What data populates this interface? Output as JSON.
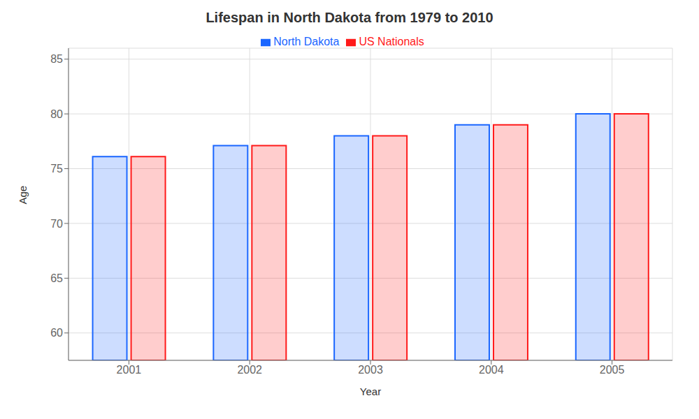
{
  "chart_data": {
    "type": "bar",
    "title": "Lifespan in North Dakota from 1979 to 2010",
    "x_label": "Year",
    "y_label": "Age",
    "categories": [
      "2001",
      "2002",
      "2003",
      "2004",
      "2005"
    ],
    "series": [
      {
        "name": "North Dakota",
        "color": "#1a66ff",
        "values": [
          76.1,
          77.1,
          78.0,
          79.0,
          80.0
        ]
      },
      {
        "name": "US Nationals",
        "color": "#ff1a1a",
        "values": [
          76.1,
          77.1,
          78.0,
          79.0,
          80.0
        ]
      }
    ],
    "ylim": [
      57.5,
      86
    ],
    "yticks": [
      60,
      65,
      70,
      75,
      80,
      85
    ],
    "grid": true,
    "legend": "top"
  }
}
